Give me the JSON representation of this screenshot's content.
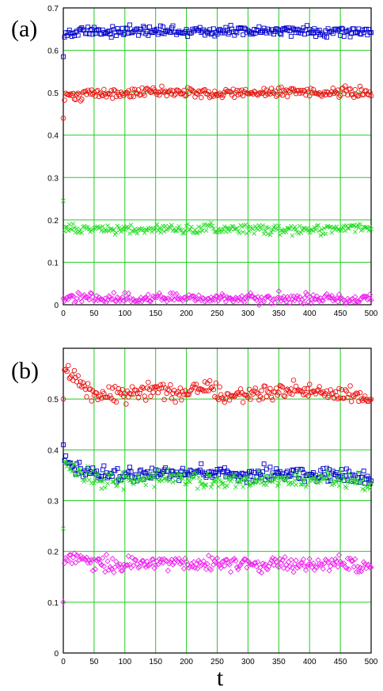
{
  "chart_data": [
    {
      "type": "scatter",
      "panel_label": "(a)",
      "xlim": [
        0,
        500
      ],
      "ylim": [
        0,
        0.7
      ],
      "x_ticks": [
        "0",
        "50",
        "100",
        "150",
        "200",
        "250",
        "300",
        "350",
        "400",
        "450",
        "500"
      ],
      "y_ticks": [
        "0",
        "0.1",
        "0.2",
        "0.3",
        "0.4",
        "0.5",
        "0.6",
        "0.7"
      ],
      "grid": true,
      "grid_color": "#22cc22",
      "series": [
        {
          "color": "#0000cc",
          "marker": "square",
          "initial": 0.585,
          "x": [
            0,
            50,
            100,
            150,
            200,
            250,
            300,
            350,
            400,
            450,
            500
          ],
          "y": [
            0.64,
            0.645,
            0.645,
            0.645,
            0.645,
            0.645,
            0.645,
            0.645,
            0.645,
            0.645,
            0.645
          ]
        },
        {
          "color": "#ee1111",
          "marker": "circle",
          "initial": 0.44,
          "x": [
            0,
            50,
            100,
            150,
            200,
            250,
            300,
            350,
            400,
            450,
            500
          ],
          "y": [
            0.49,
            0.5,
            0.5,
            0.5,
            0.5,
            0.5,
            0.5,
            0.5,
            0.5,
            0.5,
            0.5
          ]
        },
        {
          "color": "#22dd22",
          "marker": "x",
          "initial": 0.245,
          "x": [
            0,
            50,
            100,
            150,
            200,
            250,
            300,
            350,
            400,
            450,
            500
          ],
          "y": [
            0.18,
            0.178,
            0.178,
            0.178,
            0.178,
            0.178,
            0.178,
            0.178,
            0.178,
            0.178,
            0.178
          ]
        },
        {
          "color": "#ee22ee",
          "marker": "diamond",
          "initial": 0.015,
          "x": [
            0,
            50,
            100,
            150,
            200,
            250,
            300,
            350,
            400,
            450,
            500
          ],
          "y": [
            0.015,
            0.015,
            0.015,
            0.015,
            0.015,
            0.015,
            0.015,
            0.015,
            0.015,
            0.015,
            0.015
          ]
        }
      ]
    },
    {
      "type": "scatter",
      "panel_label": "(b)",
      "xlabel": "t",
      "xlim": [
        0,
        500
      ],
      "ylim": [
        0,
        0.6
      ],
      "x_ticks": [
        "0",
        "50",
        "100",
        "150",
        "200",
        "250",
        "300",
        "350",
        "400",
        "450",
        "500"
      ],
      "y_ticks": [
        "0",
        "0.1",
        "0.2",
        "0.3",
        "0.4",
        "0.5"
      ],
      "grid": true,
      "grid_color": "#22cc22",
      "series": [
        {
          "color": "#ee1111",
          "marker": "circle",
          "initial": 0.5,
          "x": [
            0,
            25,
            50,
            100,
            150,
            200,
            230,
            260,
            300,
            350,
            380,
            420,
            450,
            500
          ],
          "y": [
            0.56,
            0.535,
            0.51,
            0.51,
            0.52,
            0.51,
            0.525,
            0.505,
            0.51,
            0.51,
            0.525,
            0.51,
            0.51,
            0.5
          ]
        },
        {
          "color": "#0000cc",
          "marker": "square",
          "initial": 0.41,
          "x": [
            0,
            25,
            50,
            100,
            150,
            200,
            250,
            300,
            350,
            400,
            450,
            500
          ],
          "y": [
            0.38,
            0.36,
            0.355,
            0.35,
            0.355,
            0.355,
            0.355,
            0.35,
            0.355,
            0.355,
            0.35,
            0.345
          ]
        },
        {
          "color": "#22dd22",
          "marker": "x",
          "initial": 0.245,
          "x": [
            0,
            25,
            50,
            100,
            150,
            200,
            250,
            300,
            350,
            400,
            450,
            500
          ],
          "y": [
            0.375,
            0.355,
            0.345,
            0.34,
            0.345,
            0.345,
            0.34,
            0.34,
            0.34,
            0.345,
            0.34,
            0.33
          ]
        },
        {
          "color": "#ee22ee",
          "marker": "diamond",
          "initial": 0.1,
          "x": [
            0,
            25,
            50,
            100,
            150,
            200,
            250,
            300,
            350,
            400,
            450,
            500
          ],
          "y": [
            0.19,
            0.185,
            0.175,
            0.175,
            0.18,
            0.175,
            0.18,
            0.175,
            0.178,
            0.175,
            0.175,
            0.17
          ]
        }
      ]
    }
  ]
}
